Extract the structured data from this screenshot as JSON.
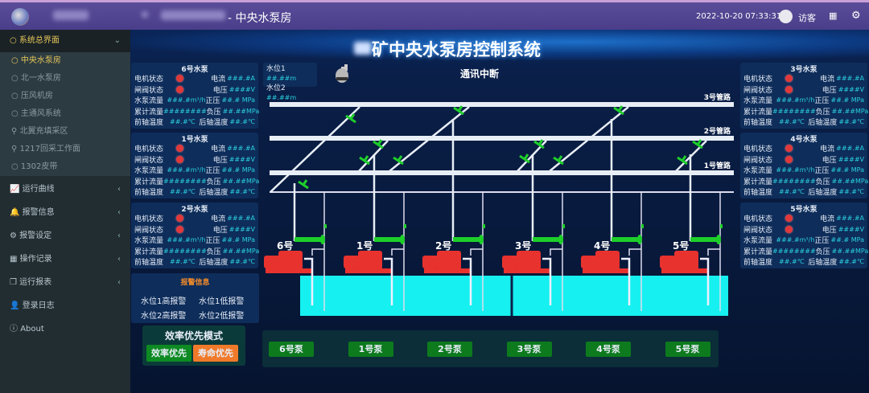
{
  "header": {
    "page_title": "- 中央水泵房",
    "datetime": "2022-10-20 07:33:31",
    "user": "访客",
    "grid_icon": "grid-icon",
    "settings_icon": "gear-icon"
  },
  "sidebar": {
    "group": {
      "label": "系统总界面",
      "expanded": true
    },
    "subitems": [
      {
        "label": "中央水泵房",
        "icon": "circle",
        "active": true
      },
      {
        "label": "北一水泵房",
        "icon": "circle"
      },
      {
        "label": "压风机房",
        "icon": "circle"
      },
      {
        "label": "主通风系统",
        "icon": "circle"
      },
      {
        "label": "北翼充填采区",
        "icon": "map-marker"
      },
      {
        "label": "1217回采工作面",
        "icon": "map-marker"
      },
      {
        "label": "1302皮带",
        "icon": "circle"
      }
    ],
    "items": [
      {
        "label": "运行曲线",
        "icon": "line-chart",
        "arrow": true
      },
      {
        "label": "报警信息",
        "icon": "bell",
        "arrow": true
      },
      {
        "label": "报警设定",
        "icon": "cogs",
        "arrow": true
      },
      {
        "label": "操作记录",
        "icon": "table",
        "arrow": true
      },
      {
        "label": "运行报表",
        "icon": "copy",
        "arrow": true
      },
      {
        "label": "登录日志",
        "icon": "user",
        "arrow": false
      },
      {
        "label": "About",
        "icon": "info",
        "arrow": false
      }
    ]
  },
  "main": {
    "title": "矿中央水泵房控制系统",
    "comm_status": "通讯中断",
    "water_level": [
      {
        "label": "水位1",
        "value": "##.##m"
      },
      {
        "label": "水位2",
        "value": "##.##m"
      }
    ],
    "pipes": [
      "3号管路",
      "2号管路",
      "1号管路"
    ],
    "pump_labels": [
      "6号",
      "1号",
      "2号",
      "3号",
      "4号",
      "5号"
    ],
    "field_labels": {
      "motor": "电机状态",
      "valve": "闸阀状态",
      "current": "电流",
      "voltage": "电压",
      "flow": "水泵流量",
      "pos": "正压",
      "total": "累计流量",
      "neg": "负压",
      "ft": "前轴温度",
      "rt": "后轴温度"
    },
    "pump_panels": [
      {
        "title": "6号水泵",
        "current": "###.#A",
        "voltage": "####V",
        "flow": "###.#m³/h",
        "pos": "##.# MPa",
        "total": "########",
        "neg": "##.##MPa",
        "ft": "##.#℃",
        "rt": "##.#℃",
        "motor": "fault",
        "valve": "fault"
      },
      {
        "title": "1号水泵",
        "current": "###.#A",
        "voltage": "####V",
        "flow": "###.#m³/h",
        "pos": "##.# MPa",
        "total": "########",
        "neg": "##.##MPa",
        "ft": "##.#℃",
        "rt": "##.#℃",
        "motor": "fault",
        "valve": "fault"
      },
      {
        "title": "2号水泵",
        "current": "###.#A",
        "voltage": "####V",
        "flow": "###.#m³/h",
        "pos": "##.# MPa",
        "total": "########",
        "neg": "##.##MPa",
        "ft": "##.#℃",
        "rt": "##.#℃",
        "motor": "fault",
        "valve": "fault"
      },
      {
        "title": "3号水泵",
        "current": "###.#A",
        "voltage": "####V",
        "flow": "###.#m³/h",
        "pos": "##.# MPa",
        "total": "########",
        "neg": "##.##MPa",
        "ft": "##.#℃",
        "rt": "##.#℃",
        "motor": "fault",
        "valve": "fault"
      },
      {
        "title": "4号水泵",
        "current": "###.#A",
        "voltage": "####V",
        "flow": "###.#m³/h",
        "pos": "##.# MPa",
        "total": "########",
        "neg": "##.##MPa",
        "ft": "##.#℃",
        "rt": "##.#℃",
        "motor": "fault",
        "valve": "fault"
      },
      {
        "title": "5号水泵",
        "current": "###.#A",
        "voltage": "####V",
        "flow": "###.#m³/h",
        "pos": "##.# MPa",
        "total": "########",
        "neg": "##.##MPa",
        "ft": "##.#℃",
        "rt": "##.#℃",
        "motor": "fault",
        "valve": "fault"
      }
    ],
    "alarm": {
      "title": "报警信息",
      "items": [
        "水位1高报警",
        "水位1低报警",
        "水位2高报警",
        "水位2低报警"
      ]
    },
    "mode": {
      "title": "效率优先模式",
      "buttons": [
        "效率优先",
        "寿命优先"
      ]
    },
    "pump_buttons": [
      "6号泵",
      "1号泵",
      "2号泵",
      "3号泵",
      "4号泵",
      "5号泵"
    ],
    "colors": {
      "pump": "#e8322e",
      "valve": "#1ecf2a",
      "water": "#16f0f0",
      "button": "#0d7a1e",
      "life_button": "#f07a2a",
      "fault": "#e0383a"
    }
  }
}
